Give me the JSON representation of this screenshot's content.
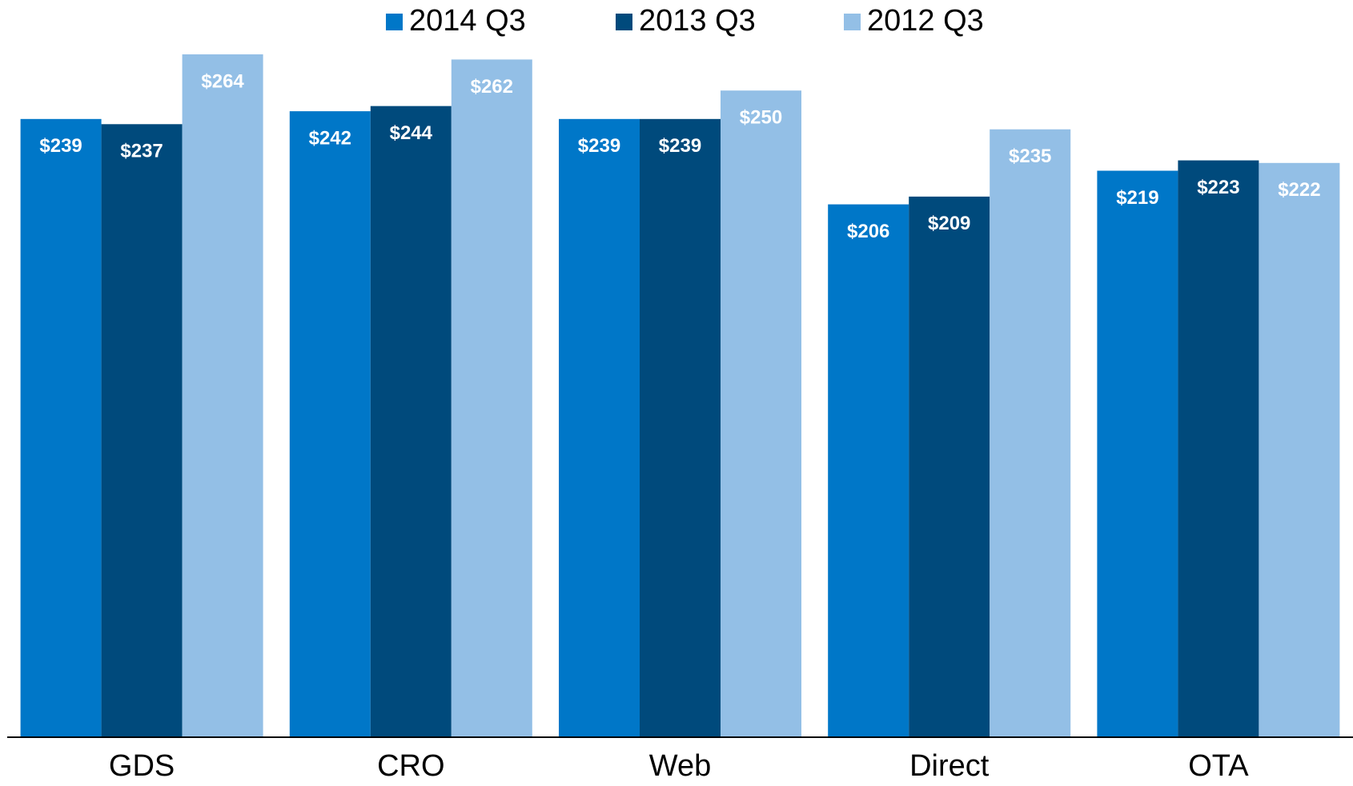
{
  "chart_data": {
    "type": "bar",
    "categories": [
      "GDS",
      "CRO",
      "Web",
      "Direct",
      "OTA"
    ],
    "series": [
      {
        "name": "2014 Q3",
        "color": "#0077c8",
        "values": [
          239,
          242,
          239,
          206,
          219
        ],
        "value_labels": [
          "$239",
          "$242",
          "$239",
          "$206",
          "$219"
        ]
      },
      {
        "name": "2013 Q3",
        "color": "#004a7c",
        "values": [
          237,
          244,
          239,
          209,
          223
        ],
        "value_labels": [
          "$237",
          "$244",
          "$239",
          "$209",
          "$223"
        ]
      },
      {
        "name": "2012 Q3",
        "color": "#93bfe6",
        "values": [
          264,
          262,
          250,
          235,
          222
        ],
        "value_labels": [
          "$264",
          "$262",
          "$250",
          "$235",
          "$222"
        ]
      }
    ],
    "ylim": [
      0,
      285
    ],
    "legend": "top"
  }
}
